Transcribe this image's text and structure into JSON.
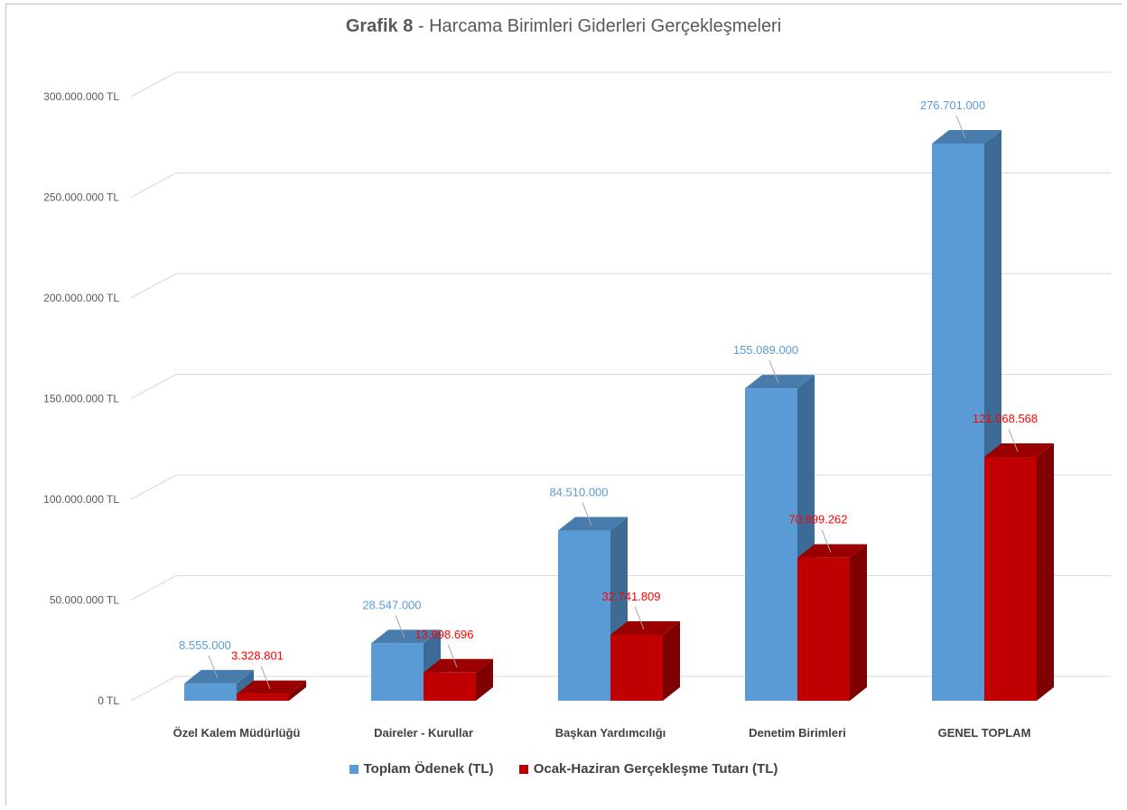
{
  "title": {
    "bold": "Grafik 8",
    "rest": " - Harcama Birimleri Giderleri Gerçekleşmeleri"
  },
  "colors": {
    "series0": "#5b9bd5",
    "series0_side": "#3c6b95",
    "series0_top": "#487cad",
    "series0_label": "#5b9bd5",
    "series1": "#c00000",
    "series1_side": "#7f0000",
    "series1_top": "#9a0000",
    "series1_label": "#ff0000",
    "grid": "#d9d9d9"
  },
  "chart_data": {
    "type": "bar",
    "title": "Grafik 8 - Harcama Birimleri Giderleri Gerçekleşmeleri",
    "categories": [
      "Özel Kalem Müdürlüğü",
      "Daireler - Kurullar",
      "Başkan Yardımcılığı",
      "Denetim Birimleri",
      "GENEL TOPLAM"
    ],
    "series": [
      {
        "name": "Toplam Ödenek (TL)",
        "values": [
          8555000,
          28547000,
          84510000,
          155089000,
          276701000
        ],
        "labels": [
          "8.555.000",
          "28.547.000",
          "84.510.000",
          "155.089.000",
          "276.701.000"
        ]
      },
      {
        "name": "Ocak-Haziran Gerçekleşme Tutarı (TL)",
        "values": [
          3328801,
          13998696,
          32741809,
          70999262,
          121068568
        ],
        "labels": [
          "3.328.801",
          "13.998.696",
          "32.741.809",
          "70.999.262",
          "121.068.568"
        ]
      }
    ],
    "yticks": [
      "0 TL",
      "50.000.000 TL",
      "100.000.000 TL",
      "150.000.000 TL",
      "200.000.000 TL",
      "250.000.000 TL",
      "300.000.000 TL"
    ],
    "ylim": [
      0,
      300000000
    ],
    "grid": true,
    "legend_position": "bottom",
    "style": "3d-clustered-column"
  }
}
